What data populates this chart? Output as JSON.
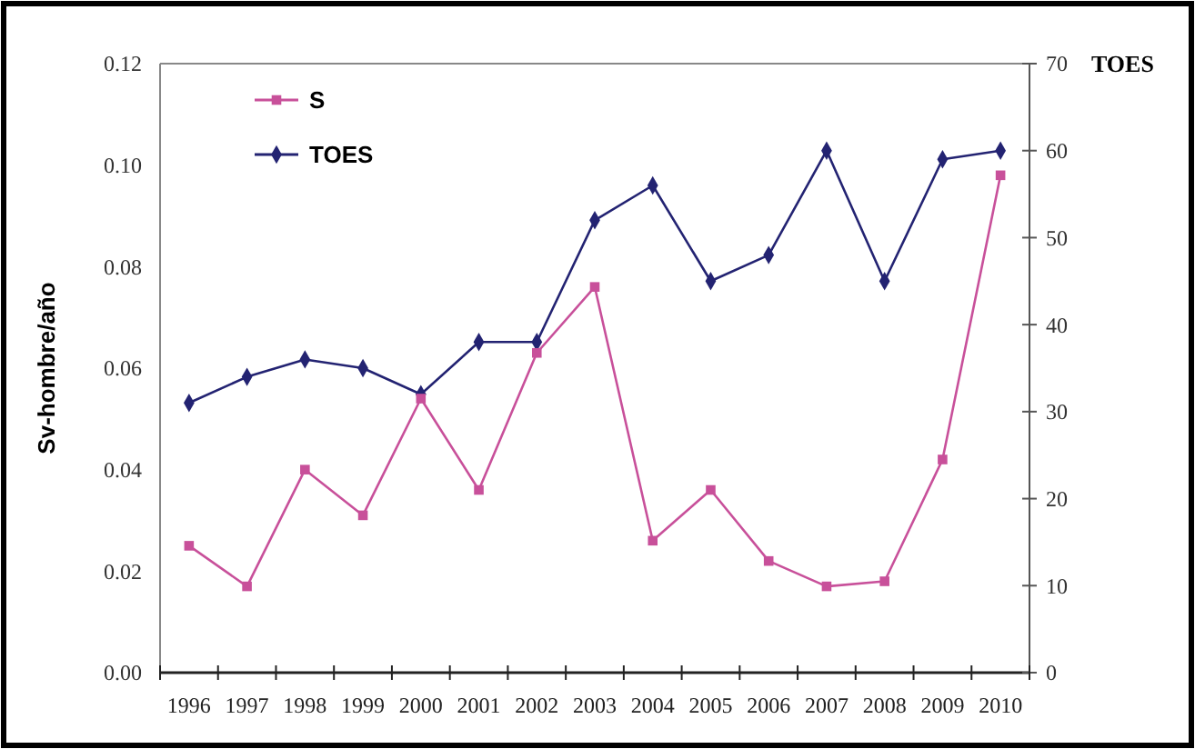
{
  "chart_data": {
    "type": "line",
    "ylabel": "Sv-hombre/año",
    "y2label": "TOES",
    "categories": [
      "1996",
      "1997",
      "1998",
      "1999",
      "2000",
      "2001",
      "2002",
      "2003",
      "2004",
      "2005",
      "2006",
      "2007",
      "2008",
      "2009",
      "2010"
    ],
    "series": [
      {
        "name": "S",
        "color": "#c8509a",
        "marker": "square",
        "values": [
          0.025,
          0.017,
          0.04,
          0.031,
          0.054,
          0.036,
          0.063,
          0.076,
          0.026,
          0.036,
          0.022,
          0.017,
          0.018,
          0.042,
          0.098
        ]
      },
      {
        "name": "TOES",
        "color": "#232372",
        "marker": "diamond",
        "axis": "y2",
        "values": [
          31,
          34,
          36,
          35,
          32,
          38,
          38,
          52,
          56,
          45,
          48,
          60,
          45,
          59,
          60
        ]
      }
    ],
    "ylim": [
      0,
      0.12
    ],
    "yticks": [
      {
        "value": 0,
        "label": "0.00"
      },
      {
        "value": 0.02,
        "label": "0.02"
      },
      {
        "value": 0.04,
        "label": "0.04"
      },
      {
        "value": 0.06,
        "label": "0.06"
      },
      {
        "value": 0.08,
        "label": "0.08"
      },
      {
        "value": 0.1,
        "label": "0.10"
      },
      {
        "value": 0.12,
        "label": "0.12"
      }
    ],
    "y2lim": [
      0,
      70
    ],
    "y2ticks": [
      0,
      10,
      20,
      30,
      40,
      50,
      60,
      70
    ],
    "legend": "top left",
    "grid": false,
    "line_style": "solid"
  }
}
